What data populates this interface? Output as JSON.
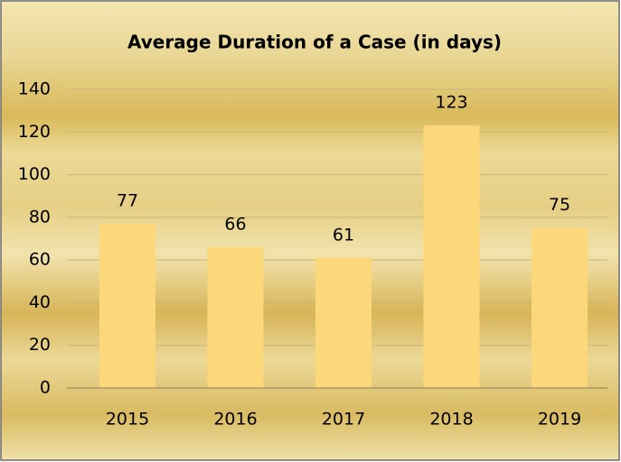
{
  "chart_data": {
    "type": "bar",
    "title": "Average Duration of a Case (in days)",
    "categories": [
      "2015",
      "2016",
      "2017",
      "2018",
      "2019"
    ],
    "values": [
      77,
      66,
      61,
      123,
      75
    ],
    "color": "#fcd87a",
    "ylim": [
      0,
      140
    ],
    "yticks": [
      0,
      20,
      40,
      60,
      80,
      100,
      120,
      140
    ],
    "grid": true
  }
}
